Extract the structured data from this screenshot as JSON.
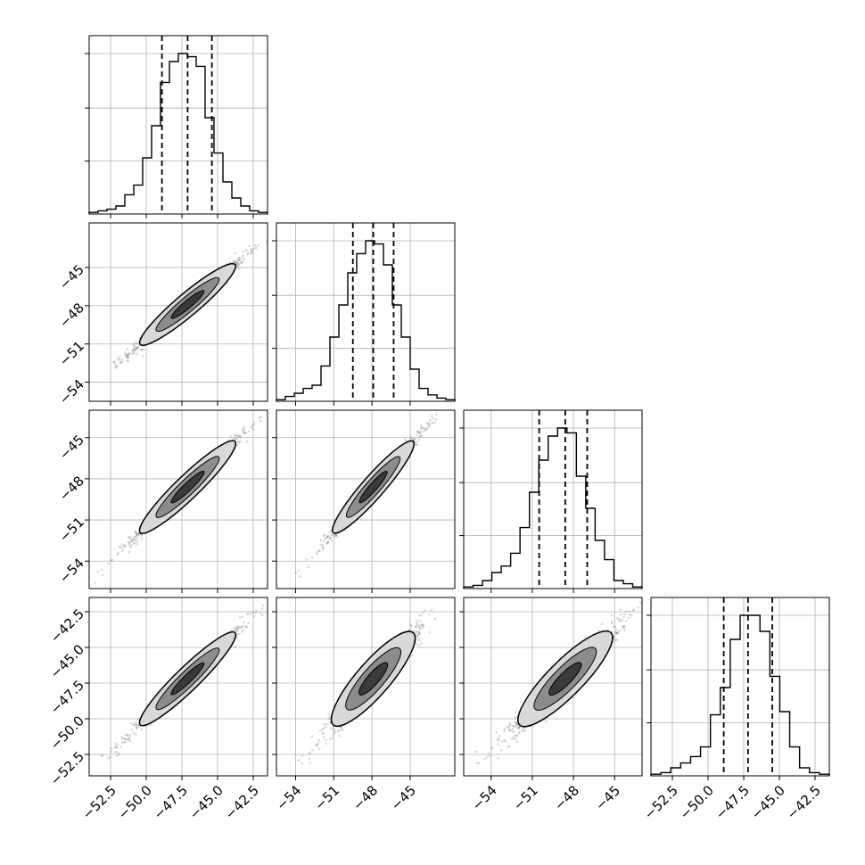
{
  "chart_data": {
    "type": "corner",
    "title": "",
    "grid": true,
    "legend": "none",
    "colors": {
      "line": "#000000",
      "grid": "#b0b0b0",
      "scatter": "#555555",
      "fill_outer": "#d9d9d9",
      "fill_mid": "#8c8c8c",
      "fill_inner": "#3a3a3a"
    },
    "variables": [
      {
        "range": [
          -54.0,
          -41.5
        ],
        "ticks": [
          -52.5,
          -50.0,
          -47.5,
          -45.0,
          -42.5
        ],
        "tick_labels": [
          "−52.5",
          "−50.0",
          "−47.5",
          "−45.0",
          "−42.5"
        ],
        "quantiles": [
          -48.9,
          -47.1,
          -45.4
        ],
        "hist": [
          0.01,
          0.02,
          0.03,
          0.05,
          0.12,
          0.18,
          0.35,
          0.55,
          0.82,
          0.95,
          1.0,
          0.98,
          0.92,
          0.6,
          0.38,
          0.2,
          0.1,
          0.05,
          0.02,
          0.01
        ]
      },
      {
        "range": [
          -55.5,
          -41.5
        ],
        "ticks": [
          -54,
          -51,
          -48,
          -45
        ],
        "tick_labels": [
          "−54",
          "−51",
          "−48",
          "−45"
        ],
        "quantiles": [
          -49.5,
          -47.9,
          -46.3
        ],
        "hist": [
          0.01,
          0.03,
          0.05,
          0.08,
          0.1,
          0.22,
          0.4,
          0.6,
          0.8,
          0.92,
          1.0,
          0.98,
          0.85,
          0.6,
          0.4,
          0.2,
          0.08,
          0.04,
          0.02,
          0.01
        ]
      },
      {
        "range": [
          -56.0,
          -43.0
        ],
        "ticks": [
          -54,
          -51,
          -48,
          -45
        ],
        "tick_labels": [
          "−54",
          "−51",
          "−48",
          "−45"
        ],
        "quantiles": [
          -50.5,
          -48.6,
          -47.0
        ],
        "hist": [
          0.01,
          0.02,
          0.05,
          0.1,
          0.14,
          0.22,
          0.38,
          0.6,
          0.8,
          0.95,
          1.0,
          0.97,
          0.7,
          0.5,
          0.3,
          0.18,
          0.05,
          0.03,
          0.01
        ]
      },
      {
        "range": [
          -54.0,
          -41.5
        ],
        "ticks": [
          -52.5,
          -50.0,
          -47.5,
          -45.0,
          -42.5
        ],
        "tick_labels": [
          "−52.5",
          "−50.0",
          "−47.5",
          "−45.0",
          "−42.5"
        ],
        "quantiles": [
          -48.9,
          -47.2,
          -45.5
        ],
        "hist": [
          0.01,
          0.02,
          0.05,
          0.08,
          0.12,
          0.18,
          0.38,
          0.55,
          0.85,
          1.0,
          1.0,
          0.9,
          0.62,
          0.4,
          0.18,
          0.05,
          0.02,
          0.01
        ]
      }
    ],
    "pairs": [
      {
        "row": 1,
        "col": 0,
        "corr": 0.99,
        "mean": [
          -47.1,
          -47.9
        ],
        "sd": [
          1.75,
          1.65
        ]
      },
      {
        "row": 2,
        "col": 0,
        "corr": 0.99,
        "mean": [
          -47.1,
          -48.6
        ],
        "sd": [
          1.75,
          1.75
        ]
      },
      {
        "row": 2,
        "col": 1,
        "corr": 0.99,
        "mean": [
          -47.9,
          -48.6
        ],
        "sd": [
          1.65,
          1.75
        ]
      },
      {
        "row": 3,
        "col": 0,
        "corr": 0.99,
        "mean": [
          -47.1,
          -47.2
        ],
        "sd": [
          1.75,
          1.7
        ]
      },
      {
        "row": 3,
        "col": 1,
        "corr": 0.97,
        "mean": [
          -47.9,
          -47.2
        ],
        "sd": [
          1.65,
          1.7
        ]
      },
      {
        "row": 3,
        "col": 2,
        "corr": 0.97,
        "mean": [
          -48.6,
          -47.2
        ],
        "sd": [
          1.75,
          1.7
        ]
      }
    ]
  }
}
